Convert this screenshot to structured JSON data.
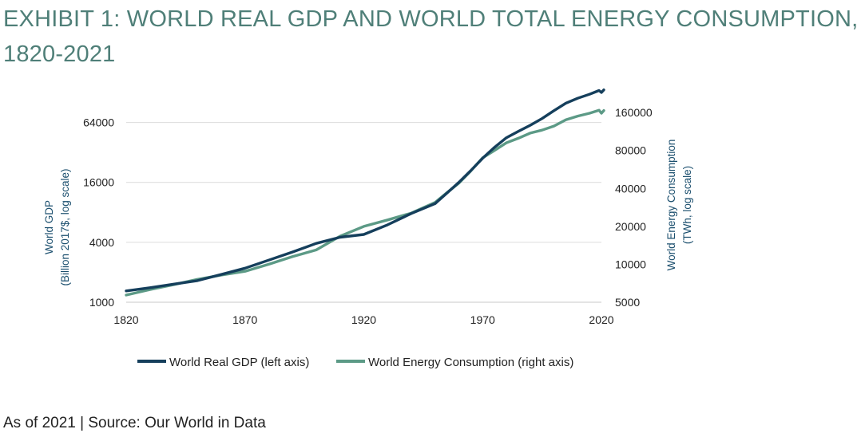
{
  "title": "EXHIBIT 1: WORLD REAL GDP AND WORLD TOTAL ENERGY CONSUMPTION, 1820-2021",
  "source": "As of 2021 | Source: Our World in Data",
  "colors": {
    "gdp": "#153f5c",
    "energy": "#5c9a86",
    "title": "#4f7f78",
    "grid": "#dcdcdc"
  },
  "chart_data": {
    "type": "line",
    "x_ticks": [
      "1820",
      "1870",
      "1920",
      "1970",
      "2020"
    ],
    "y_left": {
      "label_line1": "World GDP",
      "label_line2": "(Billion 2017$, log scale)",
      "scale": "log",
      "range": [
        1000,
        128000
      ],
      "ticks": [
        "1000",
        "4000",
        "16000",
        "64000"
      ]
    },
    "y_right": {
      "label_line1": "World Energy Consumption",
      "label_line2": "(TWh, log scale)",
      "scale": "log",
      "range": [
        5000,
        175000
      ],
      "ticks": [
        "5000",
        "10000",
        "20000",
        "40000",
        "80000",
        "160000"
      ]
    },
    "grid": true,
    "legend_position": "bottom",
    "series": [
      {
        "name": "World Real GDP (left axis)",
        "axis": "left",
        "points": [
          [
            1820,
            1300
          ],
          [
            1830,
            1400
          ],
          [
            1840,
            1520
          ],
          [
            1850,
            1650
          ],
          [
            1860,
            1900
          ],
          [
            1870,
            2200
          ],
          [
            1880,
            2650
          ],
          [
            1890,
            3200
          ],
          [
            1900,
            3900
          ],
          [
            1910,
            4500
          ],
          [
            1920,
            4800
          ],
          [
            1930,
            6000
          ],
          [
            1940,
            7800
          ],
          [
            1950,
            9800
          ],
          [
            1955,
            12500
          ],
          [
            1960,
            16000
          ],
          [
            1965,
            21000
          ],
          [
            1970,
            28000
          ],
          [
            1975,
            36000
          ],
          [
            1980,
            45000
          ],
          [
            1985,
            52000
          ],
          [
            1990,
            60000
          ],
          [
            1995,
            70000
          ],
          [
            2000,
            84000
          ],
          [
            2005,
            100000
          ],
          [
            2010,
            112000
          ],
          [
            2015,
            123000
          ],
          [
            2019,
            134000
          ],
          [
            2020,
            128000
          ],
          [
            2021,
            136000
          ]
        ]
      },
      {
        "name": "World Energy Consumption (right axis)",
        "axis": "right",
        "points": [
          [
            1820,
            5700
          ],
          [
            1830,
            6300
          ],
          [
            1840,
            6900
          ],
          [
            1850,
            7600
          ],
          [
            1860,
            8200
          ],
          [
            1870,
            8800
          ],
          [
            1880,
            10000
          ],
          [
            1890,
            11500
          ],
          [
            1900,
            13000
          ],
          [
            1910,
            16700
          ],
          [
            1920,
            20000
          ],
          [
            1930,
            22500
          ],
          [
            1940,
            25500
          ],
          [
            1950,
            31000
          ],
          [
            1955,
            37000
          ],
          [
            1960,
            44000
          ],
          [
            1965,
            55000
          ],
          [
            1970,
            70000
          ],
          [
            1975,
            80000
          ],
          [
            1980,
            92000
          ],
          [
            1985,
            100000
          ],
          [
            1990,
            110000
          ],
          [
            1995,
            116000
          ],
          [
            2000,
            125000
          ],
          [
            2005,
            140000
          ],
          [
            2010,
            150000
          ],
          [
            2015,
            158000
          ],
          [
            2019,
            167000
          ],
          [
            2020,
            158000
          ],
          [
            2021,
            166000
          ]
        ]
      }
    ]
  }
}
